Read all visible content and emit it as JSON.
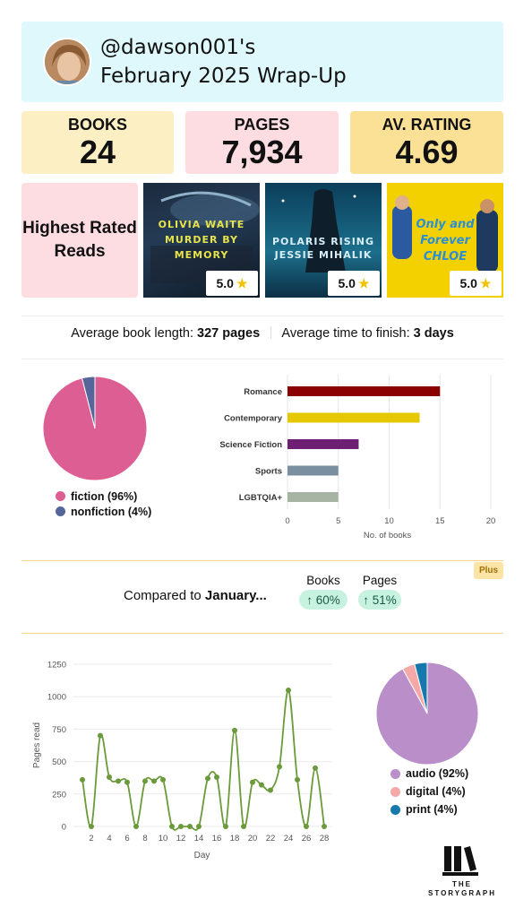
{
  "header": {
    "username": "@dawson001's",
    "subtitle": "February 2025 Wrap-Up"
  },
  "stats": {
    "books_label": "BOOKS",
    "books_value": "24",
    "pages_label": "PAGES",
    "pages_value": "7,934",
    "rating_label": "AV. RATING",
    "rating_value": "4.69"
  },
  "highest_rated": {
    "heading": "Highest Rated Reads",
    "books": [
      {
        "cover_text": "OLIVIA WAITE MURDER BY MEMORY",
        "rating": "5.0"
      },
      {
        "cover_text": "POLARIS RISING JESSIE MIHALIK",
        "rating": "5.0"
      },
      {
        "cover_text": "Only and Forever CHLOE",
        "rating": "5.0"
      }
    ]
  },
  "averages": {
    "length_label": "Average book length:",
    "length_value": "327 pages",
    "time_label": "Average time to finish:",
    "time_value": "3 days"
  },
  "comparison": {
    "label": "Compared to",
    "month": "January...",
    "books_label": "Books",
    "books_change": "↑ 60%",
    "pages_label": "Pages",
    "pages_change": "↑ 51%",
    "plus_badge": "Plus"
  },
  "brand": {
    "name_line1": "THE",
    "name_line2": "STORYGRAPH"
  },
  "colors": {
    "fiction": "#dd5e92",
    "nonfiction": "#56669a",
    "audio": "#b98ec9",
    "digital": "#f4a8a8",
    "print": "#1779ab",
    "line": "#6a9a3a"
  },
  "chart_data": [
    {
      "type": "pie",
      "labels": [
        "fiction (96%)",
        "nonfiction (4%)"
      ],
      "values": [
        96,
        4
      ],
      "colors": [
        "#dd5e92",
        "#56669a"
      ]
    },
    {
      "type": "bar",
      "orientation": "horizontal",
      "categories": [
        "Romance",
        "Contemporary",
        "Science Fiction",
        "Sports",
        "LGBTQIA+"
      ],
      "values": [
        15,
        13,
        7,
        5,
        5
      ],
      "colors": [
        "#8b0000",
        "#e5c800",
        "#6d1f73",
        "#7a8fa0",
        "#a7b3a3"
      ],
      "xlabel": "No. of books",
      "xlim": [
        0,
        20
      ],
      "xticks": [
        0,
        5,
        10,
        15,
        20
      ],
      "grid": true
    },
    {
      "type": "line",
      "xlabel": "Day",
      "ylabel": "Pages read",
      "x": [
        1,
        2,
        3,
        4,
        5,
        6,
        7,
        8,
        9,
        10,
        11,
        12,
        13,
        14,
        15,
        16,
        17,
        18,
        19,
        20,
        21,
        22,
        23,
        24,
        25,
        26,
        27,
        28
      ],
      "y": [
        360,
        0,
        700,
        380,
        350,
        340,
        0,
        350,
        350,
        360,
        0,
        0,
        0,
        0,
        370,
        380,
        0,
        740,
        0,
        340,
        320,
        280,
        460,
        1050,
        360,
        0,
        450,
        0
      ],
      "ylim": [
        0,
        1250
      ],
      "yticks": [
        0,
        250,
        500,
        750,
        1000,
        1250
      ],
      "xticks": [
        2,
        4,
        6,
        8,
        10,
        12,
        14,
        16,
        18,
        20,
        22,
        24,
        26,
        28
      ],
      "grid": true
    },
    {
      "type": "pie",
      "labels": [
        "audio (92%)",
        "digital (4%)",
        "print (4%)"
      ],
      "values": [
        92,
        4,
        4
      ],
      "colors": [
        "#b98ec9",
        "#f4a8a8",
        "#1779ab"
      ]
    }
  ]
}
